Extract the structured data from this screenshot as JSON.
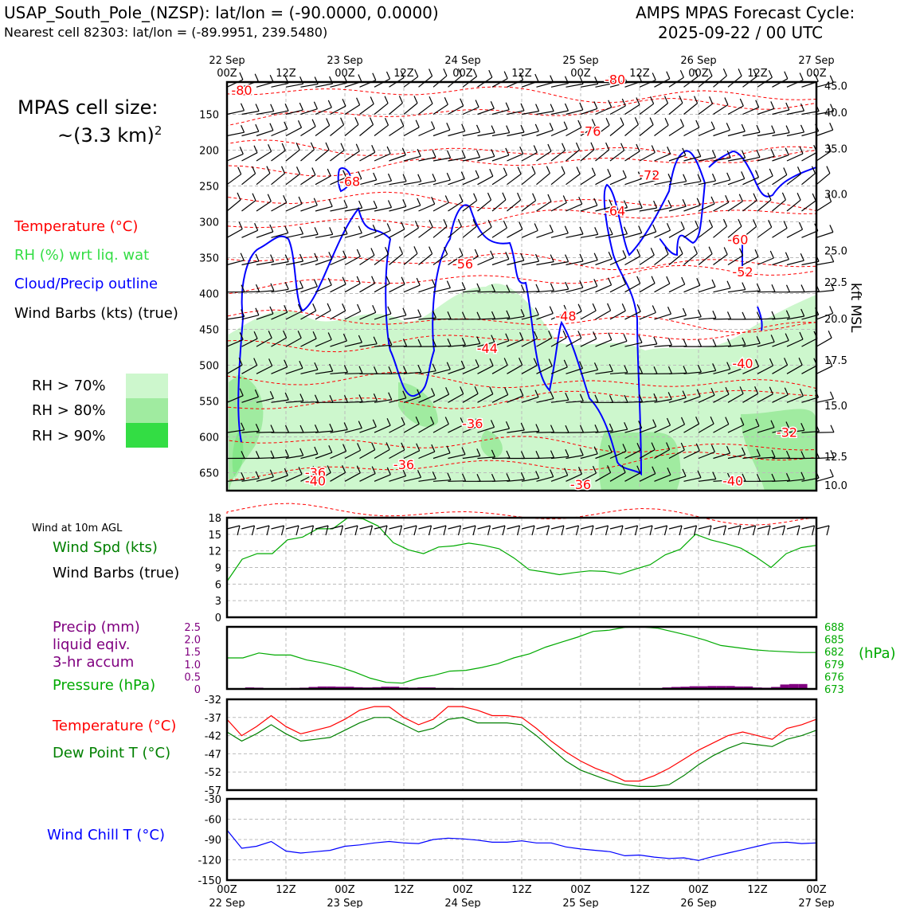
{
  "header": {
    "station_line": "USAP_South_Pole_(NZSP): lat/lon = (-90.0000, 0.0000)",
    "cell_line": "Nearest cell 82303: lat/lon = (-89.9951, 239.5480)",
    "cycle_title": "AMPS MPAS Forecast Cycle:",
    "cycle_time": "2025-09-22 / 00 UTC"
  },
  "cell_size": {
    "label": "MPAS cell size:",
    "value": "~(3.3 km)",
    "exponent": "2"
  },
  "legend": {
    "temperature": "Temperature (°C)",
    "rh": "RH (%) wrt liq. wat",
    "cloud": "Cloud/Precip outline",
    "barbs": "Wind Barbs (kts) (true)",
    "rh_levels": [
      {
        "label": "RH > 70%",
        "color": "#cdf7cd"
      },
      {
        "label": "RH > 80%",
        "color": "#a0eba0"
      },
      {
        "label": "RH > 90%",
        "color": "#33dd44"
      }
    ]
  },
  "colors": {
    "temperature": "#ff0000",
    "rh": "#33cc33",
    "cloud": "#0000ff",
    "precip": "#800080",
    "pressure": "#00aa00",
    "dewpoint": "#008000",
    "windchill": "#0000ff"
  },
  "time_axis": {
    "ticks": [
      {
        "top": "22 Sep",
        "bottom": "00Z"
      },
      {
        "top": "",
        "bottom": "12Z"
      },
      {
        "top": "23 Sep",
        "bottom": "00Z"
      },
      {
        "top": "",
        "bottom": "12Z"
      },
      {
        "top": "24 Sep",
        "bottom": "00Z"
      },
      {
        "top": "",
        "bottom": "12Z"
      },
      {
        "top": "25 Sep",
        "bottom": "00Z"
      },
      {
        "top": "",
        "bottom": "12Z"
      },
      {
        "top": "26 Sep",
        "bottom": "00Z"
      },
      {
        "top": "",
        "bottom": "12Z"
      },
      {
        "top": "27 Sep",
        "bottom": "00Z"
      }
    ]
  },
  "chart_data": [
    {
      "type": "heatmap",
      "yaxis_left": {
        "ticks": [
          150,
          200,
          250,
          300,
          350,
          400,
          450,
          500,
          550,
          600,
          650
        ],
        "range": [
          105,
          675
        ]
      },
      "yaxis_right": {
        "label": "kft MSL",
        "ticks": [
          "45.0",
          "40.0",
          "35.0",
          "30.0",
          "25.0",
          "22.5",
          "20.0",
          "17.5",
          "15.0",
          "12.5",
          "10.0"
        ],
        "tick_pressures": [
          110,
          147,
          198,
          261,
          340,
          384,
          435,
          493,
          556,
          627,
          667
        ]
      },
      "temperature_contour_labels": [
        {
          "text": "-80",
          "t": 3,
          "p": 123
        },
        {
          "text": "-80",
          "t": 79,
          "p": 108
        },
        {
          "text": "-76",
          "t": 74,
          "p": 180
        },
        {
          "text": "-72",
          "t": 86,
          "p": 241
        },
        {
          "text": "-68",
          "t": 25,
          "p": 250
        },
        {
          "text": "-64",
          "t": 79,
          "p": 291
        },
        {
          "text": "-60",
          "t": 104,
          "p": 331
        },
        {
          "text": "-56",
          "t": 48,
          "p": 365
        },
        {
          "text": "-52",
          "t": 105,
          "p": 376
        },
        {
          "text": "-48",
          "t": 69,
          "p": 438
        },
        {
          "text": "-44",
          "t": 53,
          "p": 483
        },
        {
          "text": "-40",
          "t": 105,
          "p": 504
        },
        {
          "text": "-36",
          "t": 50,
          "p": 588
        },
        {
          "text": "-32",
          "t": 114,
          "p": 600
        },
        {
          "text": "-36",
          "t": 36,
          "p": 645
        },
        {
          "text": "-36",
          "t": 18,
          "p": 656
        },
        {
          "text": "-40",
          "t": 18,
          "p": 668
        },
        {
          "text": "-36",
          "t": 72,
          "p": 673
        },
        {
          "text": "-40",
          "t": 103,
          "p": 668
        }
      ]
    },
    {
      "type": "line",
      "title": "Wind at 10m AGL",
      "series": [
        {
          "name": "Wind Spd (kts)",
          "values": [
            6.5,
            10.5,
            11.5,
            11.5,
            14,
            14.5,
            16,
            16,
            18,
            17.8,
            16.5,
            13.5,
            12.2,
            11.5,
            12.7,
            12.9,
            13.4,
            13,
            12.4,
            10.7,
            8.6,
            8.2,
            7.7,
            8.1,
            8.4,
            8.3,
            7.8,
            8.7,
            9.5,
            11.3,
            12.3,
            15,
            14,
            13.3,
            12.5,
            10.9,
            9,
            11.5,
            12.6,
            13
          ]
        }
      ],
      "barbs_label": "Wind Barbs (true)",
      "ylim": [
        0,
        18
      ],
      "yticks": [
        0,
        3,
        6,
        9,
        12,
        15,
        18
      ]
    },
    {
      "type": "bar",
      "series": [
        {
          "name": "Precip (mm)",
          "values": [
            0,
            0,
            0.06,
            0.05,
            0,
            0.02,
            0.03,
            0.04,
            0.05,
            0.08,
            0.1,
            0.1,
            0.09,
            0.09,
            0.07,
            0.06,
            0.07,
            0.09,
            0.09,
            0.06,
            0.05,
            0.06,
            0.06,
            0.04,
            0.04,
            0,
            0,
            0,
            0,
            0,
            0,
            0,
            0,
            0,
            0,
            0,
            0,
            0,
            0,
            0,
            0,
            0,
            0,
            0,
            0,
            0,
            0,
            0,
            0.06,
            0.08,
            0.09,
            0.11,
            0.11,
            0.12,
            0.12,
            0.12,
            0.1,
            0.1,
            0.06,
            0.05,
            0.08,
            0.18,
            0.2,
            0.2,
            0
          ]
        },
        {
          "name": "Pressure (hPa)",
          "values": [
            680.5,
            680.5,
            681.7,
            681.2,
            681.2,
            680,
            679.3,
            678.4,
            677.1,
            675.6,
            674.6,
            674.4,
            675.6,
            676.3,
            677.3,
            677.5,
            678.2,
            679.1,
            680.5,
            681.5,
            683.1,
            684.3,
            685.5,
            686.9,
            687.2,
            687.9,
            688,
            687.7,
            686.8,
            685.9,
            684.8,
            683.5,
            683,
            682.5,
            682.2,
            682.0,
            681.8,
            681.8
          ]
        }
      ],
      "label_lines": [
        "Precip (mm)",
        "liquid eqiv.",
        "3-hr accum"
      ],
      "pressure_label": "Pressure (hPa)",
      "right_unit": "(hPa)",
      "ylim": [
        0,
        2.5
      ],
      "yticks": [
        "0",
        "0.5",
        "1.0",
        "1.5",
        "2.0",
        "2.5"
      ],
      "ylim_right": [
        673,
        688
      ],
      "yticks_right": [
        "673",
        "676",
        "679",
        "682",
        "685",
        "688"
      ]
    },
    {
      "type": "line",
      "series": [
        {
          "name": "Temperature (°C)",
          "values": [
            -37.5,
            -42,
            -39.5,
            -36.5,
            -39.5,
            -41.5,
            -40.5,
            -39.5,
            -37.5,
            -35,
            -34,
            -34,
            -37,
            -39,
            -37.5,
            -34,
            -34,
            -35,
            -36.5,
            -36.5,
            -37,
            -40,
            -43.5,
            -46.5,
            -49,
            -51,
            -52.5,
            -54.5,
            -54.5,
            -53,
            -51,
            -48.5,
            -46,
            -44,
            -42,
            -41,
            -42,
            -43,
            -40,
            -39,
            -37.5
          ]
        },
        {
          "name": "Dew Point T (°C)",
          "values": [
            -41,
            -43.5,
            -41.5,
            -39,
            -41.5,
            -43.5,
            -43,
            -42.5,
            -40.5,
            -38.5,
            -37,
            -37,
            -39,
            -41,
            -40,
            -37.5,
            -37,
            -38.5,
            -38.5,
            -38.5,
            -39,
            -42,
            -45.5,
            -49,
            -51.5,
            -53,
            -54.5,
            -55.5,
            -56,
            -56,
            -55.5,
            -53,
            -50,
            -47.5,
            -45.5,
            -44,
            -44.5,
            -45,
            -43,
            -42,
            -40.5
          ]
        }
      ],
      "ylim": [
        -57,
        -32
      ],
      "yticks": [
        -57,
        -52,
        -47,
        -42,
        -37,
        -32
      ]
    },
    {
      "type": "line",
      "series": [
        {
          "name": "Wind Chill T (°C)",
          "values": [
            -76,
            -103,
            -100,
            -93,
            -107,
            -110,
            -108,
            -106,
            -100,
            -98,
            -95,
            -93,
            -95,
            -96,
            -90,
            -88,
            -89,
            -91,
            -94,
            -94,
            -92,
            -95,
            -95,
            -101,
            -104,
            -106,
            -108,
            -114,
            -113,
            -116,
            -118,
            -117,
            -121,
            -115,
            -110,
            -105,
            -100,
            -95,
            -94,
            -96,
            -95
          ]
        }
      ],
      "ylim": [
        -150,
        -30
      ],
      "yticks": [
        -150,
        -120,
        -90,
        -60,
        -30
      ]
    }
  ]
}
